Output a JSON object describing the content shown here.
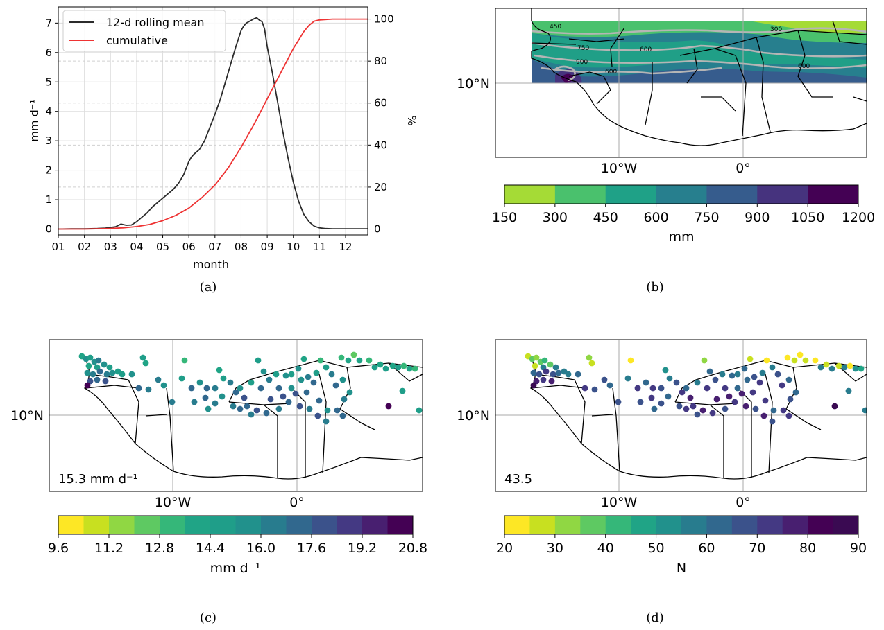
{
  "chart_data": [
    {
      "panel": "(a)",
      "type": "line",
      "xlabel": "month",
      "ylabel": "mm d⁻¹",
      "y2label": "%",
      "x_ticks": [
        "01",
        "02",
        "03",
        "04",
        "05",
        "06",
        "07",
        "08",
        "09",
        "10",
        "11",
        "12"
      ],
      "y_ticks": [
        0,
        1,
        2,
        3,
        4,
        5,
        6,
        7
      ],
      "y2_ticks": [
        0,
        20,
        40,
        60,
        80,
        100
      ],
      "ylim": [
        -0.2,
        7.55
      ],
      "y2lim": [
        -2.8,
        105.8
      ],
      "xlim": [
        1,
        12.85
      ],
      "legend_position": "upper-left",
      "series": [
        {
          "name": "12-d rolling mean",
          "color": "#2b2b2b",
          "axis": "left",
          "x": [
            1,
            1.5,
            2,
            2.5,
            2.8,
            3.2,
            3.4,
            3.6,
            3.8,
            4.0,
            4.2,
            4.4,
            4.6,
            4.8,
            5.0,
            5.2,
            5.4,
            5.6,
            5.8,
            6.0,
            6.1,
            6.2,
            6.4,
            6.6,
            6.8,
            7.0,
            7.2,
            7.4,
            7.6,
            7.8,
            8.0,
            8.1,
            8.2,
            8.3,
            8.4,
            8.5,
            8.6,
            8.7,
            8.8,
            8.9,
            9.0,
            9.2,
            9.4,
            9.6,
            9.8,
            10.0,
            10.2,
            10.4,
            10.6,
            10.8,
            11.0,
            11.2,
            11.5,
            12,
            12.5,
            12.85
          ],
          "y": [
            0.0,
            0.01,
            0.01,
            0.02,
            0.03,
            0.08,
            0.17,
            0.13,
            0.14,
            0.25,
            0.4,
            0.55,
            0.75,
            0.9,
            1.05,
            1.2,
            1.35,
            1.55,
            1.85,
            2.3,
            2.45,
            2.55,
            2.7,
            3.0,
            3.45,
            3.9,
            4.4,
            5.0,
            5.6,
            6.2,
            6.75,
            6.9,
            7.0,
            7.05,
            7.1,
            7.15,
            7.18,
            7.1,
            7.05,
            6.8,
            6.2,
            5.3,
            4.3,
            3.3,
            2.4,
            1.6,
            0.95,
            0.5,
            0.25,
            0.1,
            0.04,
            0.02,
            0.01,
            0.01,
            0.01,
            0.01
          ]
        },
        {
          "name": "cumulative",
          "color": "#ee3333",
          "axis": "right",
          "x": [
            1,
            2,
            3,
            3.5,
            4,
            4.5,
            5,
            5.5,
            6,
            6.5,
            7,
            7.5,
            8,
            8.5,
            9,
            9.5,
            10,
            10.2,
            10.4,
            10.6,
            10.8,
            11,
            11.5,
            12,
            12.85
          ],
          "y": [
            0,
            0,
            0.3,
            0.6,
            1.2,
            2.2,
            4,
            6.5,
            10,
            15,
            21,
            29,
            39,
            50,
            62,
            74,
            86,
            90,
            94,
            97,
            99,
            99.6,
            100,
            100,
            100
          ]
        }
      ]
    },
    {
      "panel": "(b)",
      "type": "heatmap",
      "map_ticks_x": [
        "10°W",
        "0°"
      ],
      "map_ticks_y": [
        "10°N"
      ],
      "colorbar_label": "mm",
      "colorbar_ticks": [
        "150",
        "300",
        "450",
        "600",
        "750",
        "900",
        "1050",
        "1200"
      ],
      "colorbar_colors": [
        "#a5db36",
        "#4ac16d",
        "#1fa187",
        "#277f8e",
        "#365c8d",
        "#46337e",
        "#440154"
      ],
      "contour_labels": [
        "450",
        "750",
        "900",
        "600",
        "600",
        "300",
        "600"
      ]
    },
    {
      "panel": "(c)",
      "type": "scatter",
      "annotation": "15.3 mm d⁻¹",
      "map_ticks_x": [
        "10°W",
        "0°"
      ],
      "map_ticks_y": [
        "10°N"
      ],
      "colorbar_label": "mm d⁻¹",
      "colorbar_ticks": [
        "9.6",
        "11.2",
        "12.8",
        "14.4",
        "16.0",
        "17.6",
        "19.2",
        "20.8"
      ],
      "colorbar_colors": [
        "#fde725",
        "#c8e020",
        "#90d743",
        "#5ec962",
        "#35b779",
        "#20a486",
        "#1f9e89",
        "#21918c",
        "#287c8e",
        "#31688e",
        "#3b528b",
        "#443983",
        "#481f70",
        "#440154"
      ]
    },
    {
      "panel": "(d)",
      "type": "scatter",
      "annotation": "43.5",
      "map_ticks_x": [
        "10°W",
        "0°"
      ],
      "map_ticks_y": [
        "10°N"
      ],
      "colorbar_label": "N",
      "colorbar_ticks": [
        "20",
        "30",
        "40",
        "50",
        "60",
        "70",
        "80",
        "90"
      ],
      "colorbar_colors": [
        "#fde725",
        "#c8e020",
        "#90d743",
        "#5ec962",
        "#35b779",
        "#20a486",
        "#21918c",
        "#287c8e",
        "#31688e",
        "#3b528b",
        "#443983",
        "#481f70",
        "#440154",
        "#3a0a52"
      ]
    }
  ],
  "captions": {
    "a": "(a)",
    "b": "(b)",
    "c": "(c)",
    "d": "(d)"
  }
}
